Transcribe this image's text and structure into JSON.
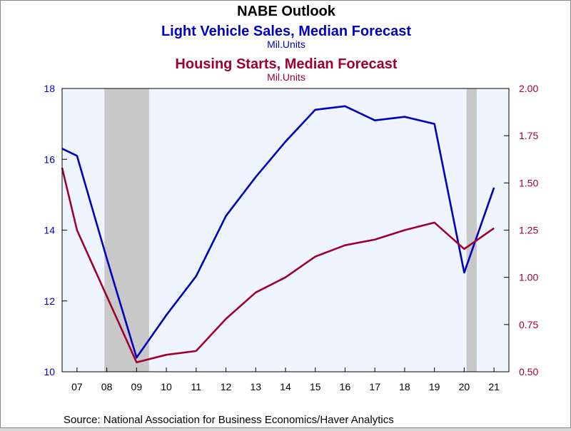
{
  "colors": {
    "left_series": "#0000c0",
    "right_series": "#a00030",
    "title": "#000000",
    "plot_bg": "#eef5ff",
    "recession": "#c8c8c8",
    "frame": "#000000"
  },
  "chart_data": {
    "type": "line",
    "title": "NABE Outlook",
    "source": "Source:  National Association for Business Economics/Haver Analytics",
    "x_tick_labels": [
      "07",
      "08",
      "09",
      "10",
      "11",
      "12",
      "13",
      "14",
      "15",
      "16",
      "17",
      "18",
      "19",
      "20",
      "21"
    ],
    "x": [
      2006.5,
      2007,
      2008,
      2009,
      2010,
      2011,
      2012,
      2013,
      2014,
      2015,
      2016,
      2017,
      2018,
      2019,
      2020,
      2021
    ],
    "xlim": [
      2006.5,
      2021.5
    ],
    "recession_shading": [
      [
        2007.92,
        2009.42
      ],
      [
        2020.08,
        2020.42
      ]
    ],
    "left_axis": {
      "ylim": [
        10,
        18
      ],
      "ticks": [
        "10",
        "12",
        "14",
        "16",
        "18"
      ]
    },
    "right_axis": {
      "ylim": [
        0.5,
        2.0
      ],
      "ticks": [
        "0.50",
        "0.75",
        "1.00",
        "1.25",
        "1.50",
        "1.75",
        "2.00"
      ]
    },
    "series": [
      {
        "name": "Light Vehicle Sales, Median Forecast",
        "units": "Mil.Units",
        "axis": "left",
        "values": [
          16.3,
          16.1,
          13.2,
          10.4,
          11.6,
          12.7,
          14.4,
          15.5,
          16.5,
          17.4,
          17.5,
          17.1,
          17.2,
          17.0,
          12.8,
          15.2
        ]
      },
      {
        "name": "Housing Starts, Median Forecast",
        "units": "Mil.Units",
        "axis": "right",
        "values": [
          1.58,
          1.25,
          0.9,
          0.55,
          0.59,
          0.61,
          0.78,
          0.92,
          1.0,
          1.11,
          1.17,
          1.2,
          1.25,
          1.29,
          1.15,
          1.26
        ]
      }
    ]
  }
}
